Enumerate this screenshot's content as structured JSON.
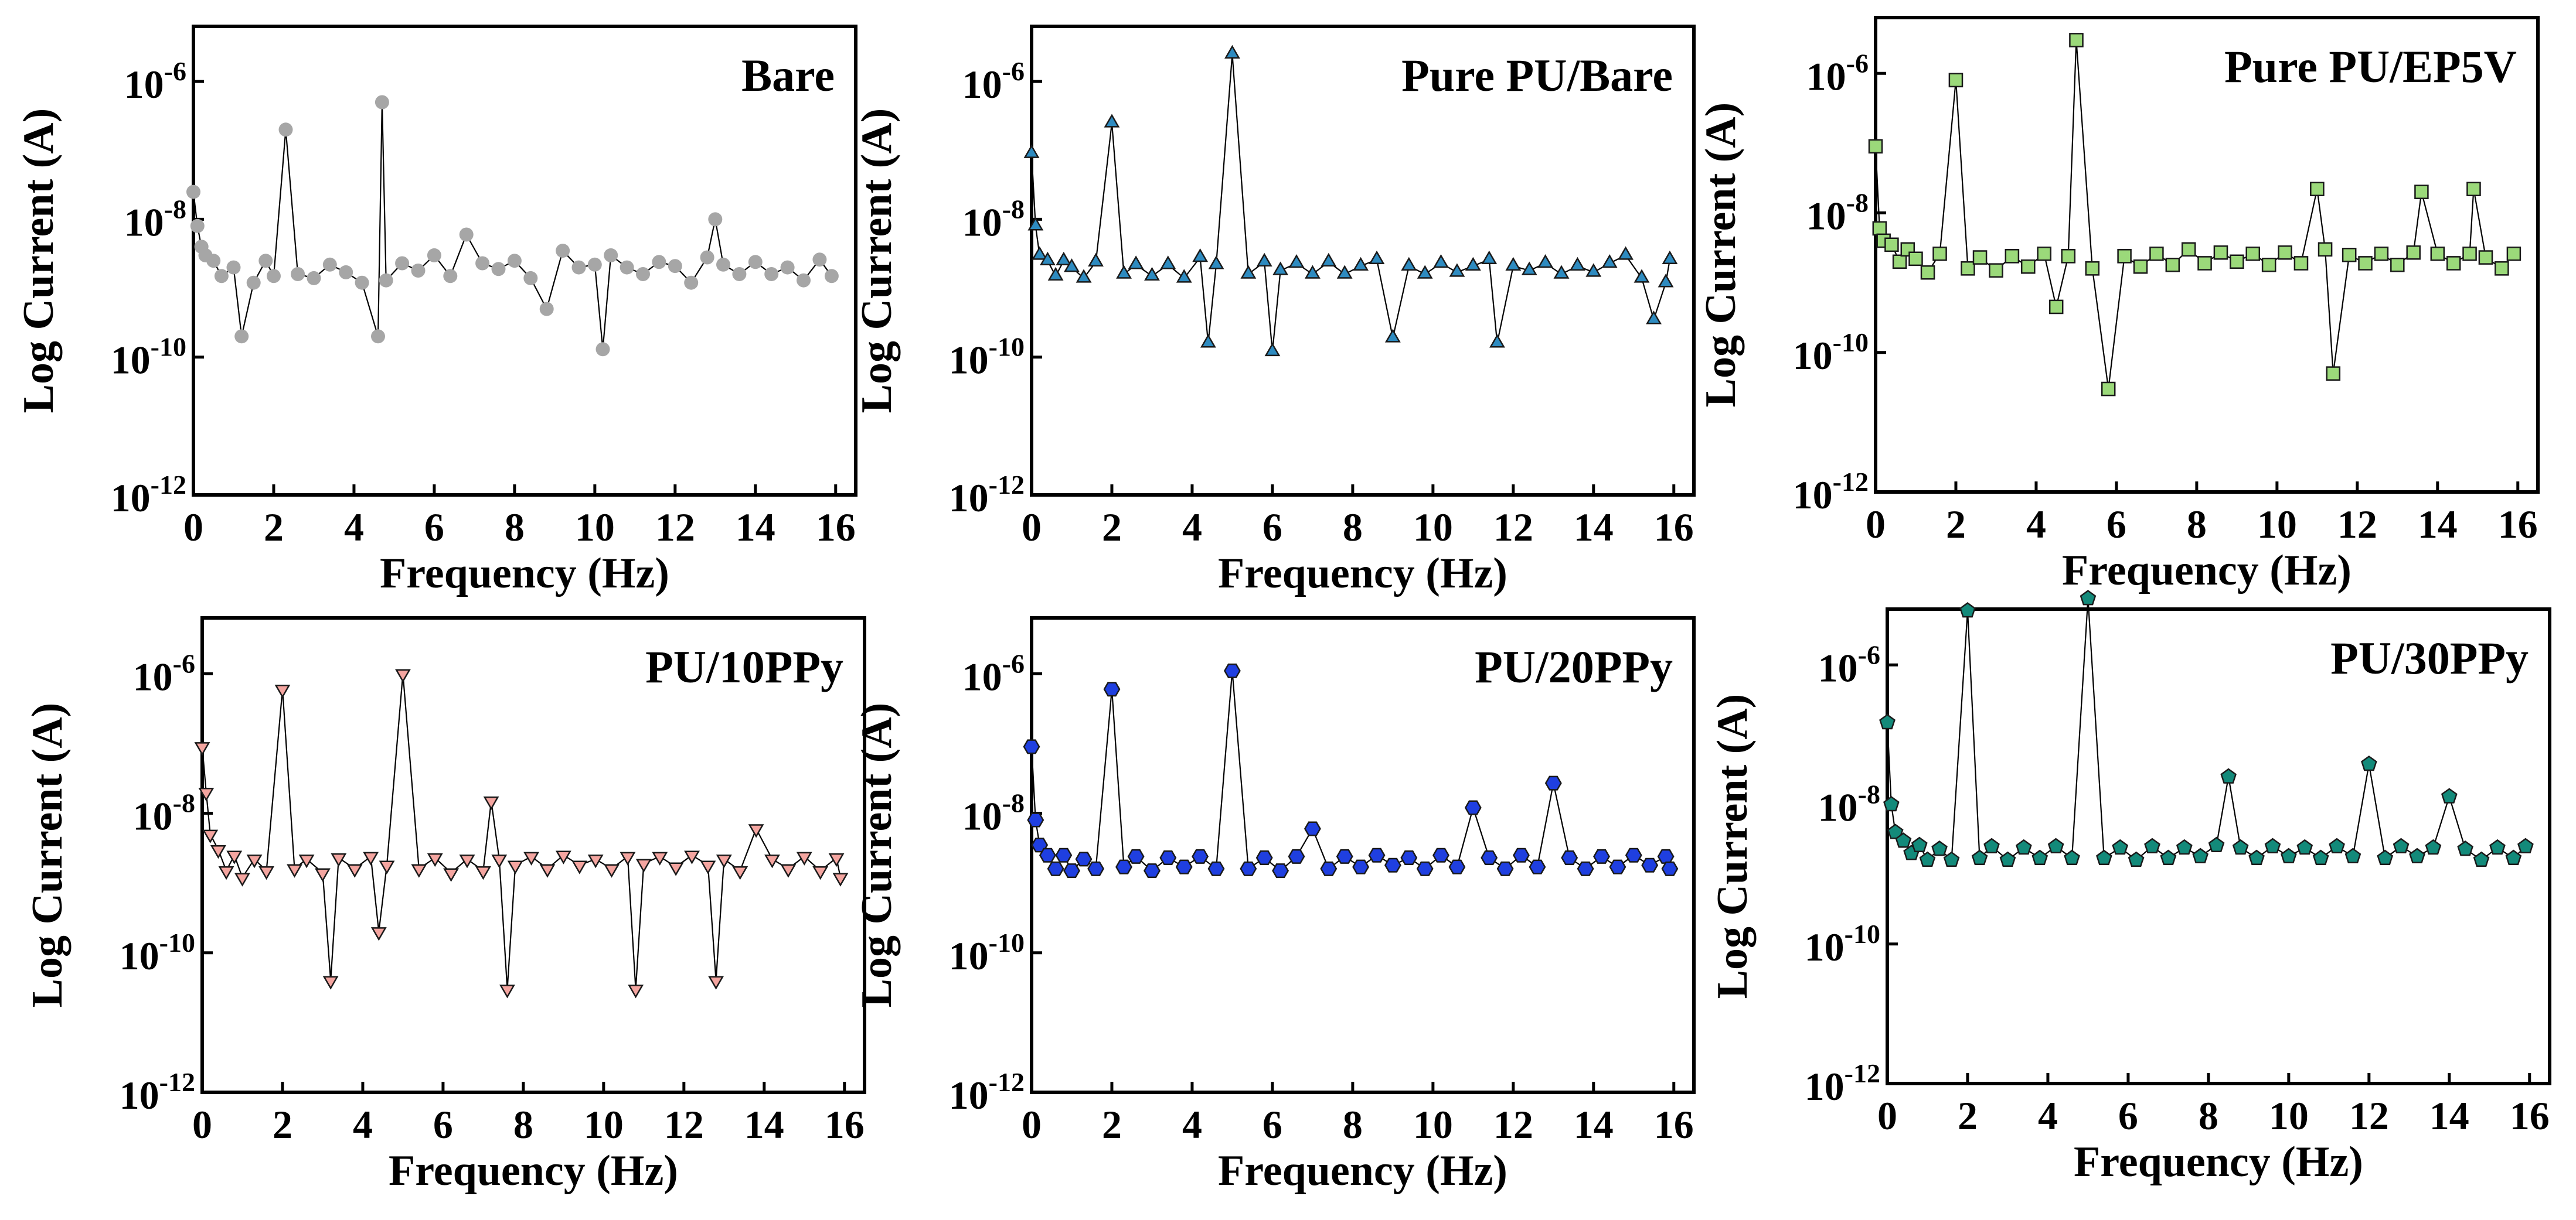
{
  "chart_data": [
    {
      "type": "scatter",
      "title": "Bare",
      "xlabel": "Frequency (Hz)",
      "ylabel": "Log Current (A)",
      "xlim": [
        0,
        16.5
      ],
      "ylim_log10": [
        -12,
        -5.2
      ],
      "x_ticks": [
        "0",
        "2",
        "4",
        "6",
        "8",
        "10",
        "12",
        "14",
        "16"
      ],
      "y_ticks": [
        "10-12",
        "10-10",
        "10-8",
        "10-6"
      ],
      "marker": "circle",
      "color": "#a6a6a6",
      "series": [
        {
          "name": "Bare",
          "x": [
            0,
            0.1,
            0.2,
            0.3,
            0.5,
            0.7,
            1.0,
            1.2,
            1.5,
            1.8,
            2.0,
            2.3,
            2.6,
            3.0,
            3.4,
            3.8,
            4.2,
            4.6,
            4.7,
            4.8,
            5.2,
            5.6,
            6.0,
            6.4,
            6.8,
            7.2,
            7.6,
            8.0,
            8.4,
            8.8,
            9.2,
            9.6,
            10.0,
            10.2,
            10.4,
            10.8,
            11.2,
            11.6,
            12.0,
            12.4,
            12.8,
            13.0,
            13.2,
            13.6,
            14.0,
            14.4,
            14.8,
            15.2,
            15.6,
            15.9
          ],
          "y": [
            2.5e-08,
            8e-09,
            4e-09,
            3e-09,
            2.5e-09,
            1.5e-09,
            2e-09,
            2e-10,
            1.2e-09,
            2.5e-09,
            1.5e-09,
            2e-07,
            1.6e-09,
            1.4e-09,
            2.2e-09,
            1.7e-09,
            1.2e-09,
            2e-10,
            5e-07,
            1.3e-09,
            2.3e-09,
            1.8e-09,
            3e-09,
            1.5e-09,
            6e-09,
            2.3e-09,
            1.9e-09,
            2.5e-09,
            1.4e-09,
            5e-10,
            3.5e-09,
            2e-09,
            2.2e-09,
            1.3e-10,
            3e-09,
            2e-09,
            1.6e-09,
            2.4e-09,
            2.1e-09,
            1.2e-09,
            2.8e-09,
            1e-08,
            2.2e-09,
            1.6e-09,
            2.4e-09,
            1.6e-09,
            2e-09,
            1.3e-09,
            2.6e-09,
            1.5e-09
          ]
        }
      ]
    },
    {
      "type": "scatter",
      "title": "Pure PU/Bare",
      "xlabel": "Frequency (Hz)",
      "ylabel": "Log Current (A)",
      "xlim": [
        0,
        16.5
      ],
      "ylim_log10": [
        -12,
        -5.2
      ],
      "x_ticks": [
        "0",
        "2",
        "4",
        "6",
        "8",
        "10",
        "12",
        "14",
        "16"
      ],
      "y_ticks": [
        "10-12",
        "10-10",
        "10-8",
        "10-6"
      ],
      "marker": "triangle-up",
      "color": "#2e8bc0",
      "series": [
        {
          "name": "Pure PU/Bare",
          "x": [
            0,
            0.1,
            0.2,
            0.4,
            0.6,
            0.8,
            1.0,
            1.3,
            1.6,
            2.0,
            2.3,
            2.6,
            3.0,
            3.4,
            3.8,
            4.2,
            4.4,
            4.6,
            5.0,
            5.4,
            5.8,
            6.0,
            6.2,
            6.6,
            7.0,
            7.4,
            7.8,
            8.2,
            8.6,
            9.0,
            9.4,
            9.8,
            10.2,
            10.6,
            11.0,
            11.4,
            11.6,
            12.0,
            12.4,
            12.8,
            13.2,
            13.6,
            14.0,
            14.4,
            14.8,
            15.2,
            15.5,
            15.8,
            15.9
          ],
          "y": [
            9e-08,
            8e-09,
            3e-09,
            2.5e-09,
            1.5e-09,
            2.5e-09,
            2e-09,
            1.4e-09,
            2.4e-09,
            2.5e-07,
            1.6e-09,
            2.2e-09,
            1.5e-09,
            2.2e-09,
            1.4e-09,
            2.8e-09,
            1.6e-10,
            2.2e-09,
            2.5e-06,
            1.6e-09,
            2.4e-09,
            1.2e-10,
            1.8e-09,
            2.3e-09,
            1.6e-09,
            2.4e-09,
            1.6e-09,
            2.1e-09,
            2.6e-09,
            1.9e-10,
            2.1e-09,
            1.6e-09,
            2.3e-09,
            1.7e-09,
            2.1e-09,
            2.6e-09,
            1.6e-10,
            2.1e-09,
            1.8e-09,
            2.3e-09,
            1.6e-09,
            2.1e-09,
            1.7e-09,
            2.3e-09,
            3e-09,
            1.4e-09,
            3.5e-10,
            1.2e-09,
            2.6e-09
          ]
        }
      ]
    },
    {
      "type": "scatter",
      "title": "Pure PU/EP5V",
      "xlabel": "Frequency (Hz)",
      "ylabel": "Log Current (A)",
      "xlim": [
        0,
        16.5
      ],
      "ylim_log10": [
        -12,
        -5.2
      ],
      "x_ticks": [
        "0",
        "2",
        "4",
        "6",
        "8",
        "10",
        "12",
        "14",
        "16"
      ],
      "y_ticks": [
        "10-12",
        "10-10",
        "10-8",
        "10-6"
      ],
      "marker": "square",
      "color": "#9bd97a",
      "series": [
        {
          "name": "Pure PU/EP5V",
          "x": [
            0,
            0.1,
            0.2,
            0.4,
            0.6,
            0.8,
            1.0,
            1.3,
            1.6,
            2.0,
            2.3,
            2.6,
            3.0,
            3.4,
            3.8,
            4.2,
            4.5,
            4.8,
            5.0,
            5.4,
            5.8,
            6.2,
            6.6,
            7.0,
            7.4,
            7.8,
            8.2,
            8.6,
            9.0,
            9.4,
            9.8,
            10.2,
            10.6,
            11.0,
            11.2,
            11.4,
            11.8,
            12.2,
            12.6,
            13.0,
            13.4,
            13.6,
            14.0,
            14.4,
            14.8,
            14.9,
            15.2,
            15.6,
            15.9
          ],
          "y": [
            9e-08,
            6e-09,
            4e-09,
            3.5e-09,
            2e-09,
            3e-09,
            2.2e-09,
            1.4e-09,
            2.6e-09,
            8e-07,
            1.6e-09,
            2.3e-09,
            1.5e-09,
            2.4e-09,
            1.7e-09,
            2.6e-09,
            4.5e-10,
            2.4e-09,
            3e-06,
            1.6e-09,
            3e-11,
            2.4e-09,
            1.7e-09,
            2.6e-09,
            1.8e-09,
            3e-09,
            1.9e-09,
            2.7e-09,
            2e-09,
            2.6e-09,
            1.8e-09,
            2.7e-09,
            1.9e-09,
            2.2e-08,
            3e-09,
            5e-11,
            2.5e-09,
            1.9e-09,
            2.6e-09,
            1.8e-09,
            2.7e-09,
            2e-08,
            2.6e-09,
            1.9e-09,
            2.6e-09,
            2.2e-08,
            2.3e-09,
            1.6e-09,
            2.6e-09
          ]
        }
      ]
    },
    {
      "type": "scatter",
      "title": "PU/10PPy",
      "xlabel": "Frequency (Hz)",
      "ylabel": "Log Current (A)",
      "xlim": [
        0,
        16.5
      ],
      "ylim_log10": [
        -12,
        -5.2
      ],
      "x_ticks": [
        "0",
        "2",
        "4",
        "6",
        "8",
        "10",
        "12",
        "14",
        "16"
      ],
      "y_ticks": [
        "10-12",
        "10-10",
        "10-8",
        "10-6"
      ],
      "marker": "triangle-down",
      "color": "#f4a5a0",
      "series": [
        {
          "name": "PU/10PPy",
          "x": [
            0,
            0.1,
            0.2,
            0.4,
            0.6,
            0.8,
            1.0,
            1.3,
            1.6,
            2.0,
            2.3,
            2.6,
            3.0,
            3.2,
            3.4,
            3.8,
            4.2,
            4.4,
            4.6,
            5.0,
            5.4,
            5.8,
            6.2,
            6.6,
            7.0,
            7.2,
            7.4,
            7.6,
            7.8,
            8.2,
            8.6,
            9.0,
            9.4,
            9.8,
            10.2,
            10.6,
            10.8,
            11.0,
            11.4,
            11.8,
            12.2,
            12.6,
            12.8,
            13.0,
            13.4,
            13.8,
            14.2,
            14.6,
            15.0,
            15.4,
            15.8,
            15.9
          ],
          "y": [
            9e-08,
            2e-08,
            5e-09,
            3e-09,
            1.5e-09,
            2.5e-09,
            1.2e-09,
            2.2e-09,
            1.5e-09,
            6e-07,
            1.6e-09,
            2.2e-09,
            1.4e-09,
            4e-11,
            2.3e-09,
            1.6e-09,
            2.4e-09,
            2e-10,
            1.8e-09,
            1e-06,
            1.6e-09,
            2.3e-09,
            1.4e-09,
            2.2e-09,
            1.5e-09,
            1.5e-08,
            2.2e-09,
            3e-11,
            1.8e-09,
            2.4e-09,
            1.6e-09,
            2.5e-09,
            1.8e-09,
            2.2e-09,
            1.6e-09,
            2.4e-09,
            3e-11,
            1.9e-09,
            2.4e-09,
            1.7e-09,
            2.5e-09,
            1.8e-09,
            4e-11,
            2.2e-09,
            1.5e-09,
            6e-09,
            2.2e-09,
            1.6e-09,
            2.4e-09,
            1.5e-09,
            2.3e-09,
            1.2e-09
          ]
        }
      ]
    },
    {
      "type": "scatter",
      "title": "PU/20PPy",
      "xlabel": "Frequency (Hz)",
      "ylabel": "Log Current (A)",
      "xlim": [
        0,
        16.5
      ],
      "ylim_log10": [
        -12,
        -5.2
      ],
      "x_ticks": [
        "0",
        "2",
        "4",
        "6",
        "8",
        "10",
        "12",
        "14",
        "16"
      ],
      "y_ticks": [
        "10-12",
        "10-10",
        "10-8",
        "10-6"
      ],
      "marker": "hexagon",
      "color": "#1f3fe0",
      "series": [
        {
          "name": "PU/20PPy",
          "x": [
            0,
            0.1,
            0.2,
            0.4,
            0.6,
            0.8,
            1.0,
            1.3,
            1.6,
            2.0,
            2.3,
            2.6,
            3.0,
            3.4,
            3.8,
            4.2,
            4.6,
            5.0,
            5.4,
            5.8,
            6.2,
            6.6,
            7.0,
            7.4,
            7.8,
            8.2,
            8.6,
            9.0,
            9.4,
            9.8,
            10.2,
            10.6,
            11.0,
            11.4,
            11.8,
            12.2,
            12.6,
            13.0,
            13.4,
            13.8,
            14.2,
            14.6,
            15.0,
            15.4,
            15.8,
            15.9
          ],
          "y": [
            9e-08,
            8e-09,
            3.5e-09,
            2.5e-09,
            1.6e-09,
            2.5e-09,
            1.5e-09,
            2.2e-09,
            1.6e-09,
            6e-07,
            1.7e-09,
            2.4e-09,
            1.5e-09,
            2.3e-09,
            1.7e-09,
            2.4e-09,
            1.6e-09,
            1.1e-06,
            1.6e-09,
            2.3e-09,
            1.5e-09,
            2.4e-09,
            6e-09,
            1.6e-09,
            2.4e-09,
            1.7e-09,
            2.5e-09,
            1.8e-09,
            2.3e-09,
            1.6e-09,
            2.5e-09,
            1.7e-09,
            1.2e-08,
            2.3e-09,
            1.6e-09,
            2.5e-09,
            1.7e-09,
            2.7e-08,
            2.3e-09,
            1.6e-09,
            2.4e-09,
            1.7e-09,
            2.5e-09,
            1.8e-09,
            2.4e-09,
            1.6e-09
          ]
        }
      ]
    },
    {
      "type": "scatter",
      "title": "PU/30PPy",
      "xlabel": "Frequency (Hz)",
      "ylabel": "Log Current (A)",
      "xlim": [
        0,
        16.5
      ],
      "ylim_log10": [
        -12,
        -5.2
      ],
      "x_ticks": [
        "0",
        "2",
        "4",
        "6",
        "8",
        "10",
        "12",
        "14",
        "16"
      ],
      "y_ticks": [
        "10-12",
        "10-10",
        "10-8",
        "10-6"
      ],
      "marker": "pentagon",
      "color": "#138a7a",
      "series": [
        {
          "name": "PU/30PPy",
          "x": [
            0,
            0.1,
            0.2,
            0.4,
            0.6,
            0.8,
            1.0,
            1.3,
            1.6,
            2.0,
            2.3,
            2.6,
            3.0,
            3.4,
            3.8,
            4.2,
            4.6,
            5.0,
            5.4,
            5.8,
            6.2,
            6.6,
            7.0,
            7.4,
            7.8,
            8.2,
            8.5,
            8.8,
            9.2,
            9.6,
            10.0,
            10.4,
            10.8,
            11.2,
            11.6,
            12.0,
            12.4,
            12.8,
            13.2,
            13.6,
            14.0,
            14.4,
            14.8,
            15.2,
            15.6,
            15.9
          ],
          "y": [
            1.5e-07,
            1e-08,
            4e-09,
            3e-09,
            2e-09,
            2.6e-09,
            1.6e-09,
            2.3e-09,
            1.6e-09,
            6e-06,
            1.7e-09,
            2.5e-09,
            1.6e-09,
            2.4e-09,
            1.7e-09,
            2.5e-09,
            1.7e-09,
            9e-06,
            1.7e-09,
            2.4e-09,
            1.6e-09,
            2.5e-09,
            1.7e-09,
            2.4e-09,
            1.8e-09,
            2.6e-09,
            2.5e-08,
            2.4e-09,
            1.7e-09,
            2.5e-09,
            1.8e-09,
            2.4e-09,
            1.7e-09,
            2.5e-09,
            1.8e-09,
            3.8e-08,
            1.7e-09,
            2.5e-09,
            1.8e-09,
            2.4e-09,
            1.3e-08,
            2.3e-09,
            1.6e-09,
            2.4e-09,
            1.7e-09,
            2.5e-09
          ]
        }
      ]
    }
  ]
}
